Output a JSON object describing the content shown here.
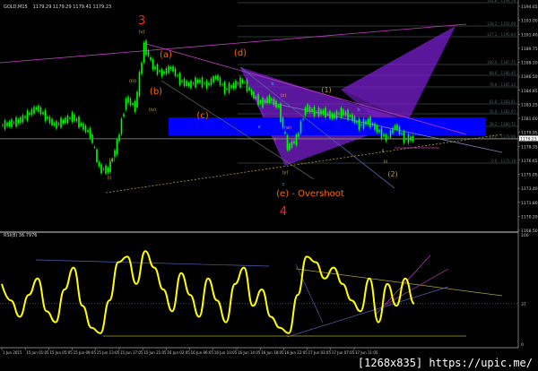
{
  "header": {
    "symbol": "GOLD,M15",
    "quote": "1179.29 1179.29 1179.41 1179.23"
  },
  "watermark": "[1268x835] https://upic.me/",
  "colors": {
    "background": "#000000",
    "candles": "#00ff00",
    "rsi": "#ffff00",
    "zone": "#0000ff",
    "pattern": "#7a1fd0",
    "trendline": "#c040c0",
    "wave_major": "#ff2020",
    "wave_minor": "#ff6a00"
  },
  "chart_data": [
    {
      "type": "line",
      "title": "GOLD,M15",
      "price_axis_ticks": [
        "1194.65",
        "1193.00",
        "1191.40",
        "1189.75",
        "1188.10",
        "1186.50",
        "1184.85",
        "1183.25",
        "1181.60",
        "1179.95",
        "1178.35",
        "1176.65",
        "1175.05",
        "1173.40",
        "1171.80",
        "1170.20",
        "1168.50"
      ],
      "current_price": "1179.23",
      "ylim": [
        1168.5,
        1194.65
      ],
      "close": [
        1180.74,
        1180.95,
        1181.26,
        1181.99,
        1182.83,
        1181.78,
        1180.74,
        1181.26,
        1181.78,
        1180.74,
        1179.69,
        1175.72,
        1175.51,
        1178.65,
        1183.88,
        1182.83,
        1190.15,
        1187.54,
        1186.8,
        1187.54,
        1185.97,
        1185.45,
        1185.97,
        1185.45,
        1186.49,
        1184.92,
        1185.45,
        1185.97,
        1184.4,
        1183.35,
        1183.88,
        1182.83,
        1178.12,
        1179.17,
        1182.83,
        1182.31,
        1182.31,
        1181.78,
        1182.31,
        1181.78,
        1180.74,
        1181.26,
        1180.22,
        1179.17,
        1180.74,
        1179.17,
        1179.23
      ],
      "time_axis_ticks": [
        "1 Jun 2015",
        "15 Jun 01:05",
        "15 Jun 05:05",
        "15 Jun 09:05",
        "15 Jun 13:05",
        "15 Jun 17:05",
        "15 Jun 21:05",
        "16 Jun 02:05",
        "16 Jun 06:05",
        "16 Jun 10:05",
        "16 Jun 14:05",
        "16 Jun 18:05",
        "16 Jun 22:05",
        "17 Jun 03:05",
        "17 Jun 07:05",
        "17 Jun 11:05"
      ],
      "fib_levels": [
        "161.8 - 1194.78",
        "138.2 - 1192.09",
        "127.2 - 1190.84",
        "100.0 - 1187.75",
        "88.6 - 1186.45",
        "78.6 - 1185.32",
        "61.8 - 1183.41",
        "50.0 - 1182.07",
        "38.2 - 1180.72",
        "23.6 - 1179.06",
        "0.0 - 1176.38"
      ],
      "annotations": {
        "major": [
          "3",
          "4"
        ],
        "corrective": [
          "(a)",
          "(b)",
          "(c)",
          "(d)",
          "(e) - Overshoot"
        ],
        "minor": [
          "(1)",
          "(2)",
          "a",
          "b",
          "c",
          "b",
          "(v)",
          "(iii)",
          "(iv)",
          "(ii)",
          "(i)",
          "(x)",
          "(w)",
          "(y)",
          "i",
          "ii",
          "iii"
        ]
      }
    },
    {
      "type": "line",
      "title": "RSI(8) 36.7976",
      "ylim": [
        0,
        100
      ],
      "axis_ticks": [
        "100",
        "37",
        "0"
      ],
      "level": 37,
      "values": [
        55,
        40,
        25,
        45,
        60,
        30,
        20,
        50,
        70,
        35,
        15,
        10,
        40,
        75,
        80,
        55,
        85,
        70,
        50,
        30,
        65,
        45,
        25,
        60,
        40,
        20,
        55,
        70,
        35,
        50,
        25,
        15,
        10,
        45,
        80,
        75,
        60,
        70,
        55,
        40,
        30,
        60,
        20,
        55,
        35,
        60,
        37
      ]
    }
  ]
}
